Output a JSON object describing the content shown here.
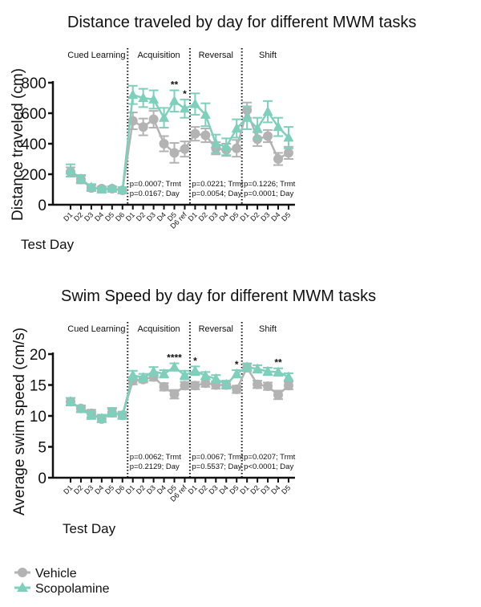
{
  "colors": {
    "vehicle": "#b3b3b3",
    "scopolamine": "#7ecfbc",
    "axis": "#111111"
  },
  "legend": {
    "entries": [
      {
        "name": "Vehicle",
        "marker": "circle",
        "color": "#b3b3b3"
      },
      {
        "name": "Scopolamine",
        "marker": "triangle",
        "color": "#7ecfbc"
      }
    ]
  },
  "chart_data": [
    {
      "type": "line",
      "title": "Distance traveled by day for different MWM tasks",
      "xlabel": "Test Day",
      "ylabel": "Distance  traveled (cm)",
      "ylim": [
        0,
        800
      ],
      "yticks": [
        "0",
        "200",
        "400",
        "600",
        "800"
      ],
      "ytick_values": [
        0,
        200,
        400,
        600,
        800
      ],
      "categories": [
        "D1",
        "D2",
        "D3",
        "D4",
        "D5",
        "D6",
        "D1",
        "D2",
        "D3",
        "D4",
        "D5",
        "D6 ref",
        "D1",
        "D2",
        "D3",
        "D4",
        "D5",
        "D1",
        "D2",
        "D3",
        "D4",
        "D5"
      ],
      "phases": [
        {
          "name": "Cued Learning",
          "start": 0,
          "end": 5,
          "pvals": []
        },
        {
          "name": "Acquisition",
          "start": 6,
          "end": 11,
          "pvals": [
            "p=0.0007; Trmt",
            "p=0.0167; Day"
          ]
        },
        {
          "name": "Reversal",
          "start": 12,
          "end": 16,
          "pvals": [
            "p=0.0221; Trmt",
            "p=0.0054; Day"
          ]
        },
        {
          "name": "Shift",
          "start": 17,
          "end": 21,
          "pvals": [
            "p=0.1226; Trmt",
            "p=0.0001; Day"
          ]
        }
      ],
      "series": [
        {
          "name": "Vehicle",
          "marker": "circle",
          "values": [
            215,
            165,
            110,
            105,
            105,
            95,
            550,
            510,
            560,
            400,
            340,
            365,
            465,
            455,
            370,
            360,
            370,
            620,
            430,
            450,
            300,
            340
          ],
          "errors": [
            30,
            25,
            20,
            15,
            15,
            20,
            55,
            55,
            55,
            50,
            65,
            50,
            45,
            45,
            40,
            40,
            55,
            50,
            45,
            40,
            40,
            40
          ]
        },
        {
          "name": "Scopolamine",
          "marker": "triangle",
          "values": [
            225,
            170,
            115,
            100,
            105,
            95,
            720,
            700,
            690,
            570,
            680,
            630,
            660,
            590,
            400,
            380,
            500,
            570,
            500,
            610,
            510,
            440
          ],
          "errors": [
            40,
            25,
            20,
            15,
            15,
            20,
            60,
            60,
            60,
            65,
            70,
            60,
            70,
            75,
            60,
            55,
            60,
            75,
            70,
            70,
            60,
            70
          ]
        }
      ],
      "annotations": [
        {
          "text": "**",
          "index": 10
        },
        {
          "text": "*",
          "index": 11
        }
      ],
      "grid": false,
      "legend_position": "bottom-left"
    },
    {
      "type": "line",
      "title": "Swim Speed by day for different MWM tasks",
      "xlabel": "Test Day",
      "ylabel": "Average swim speed  (cm/s)",
      "ylim": [
        0,
        20
      ],
      "yticks": [
        "0",
        "5",
        "10",
        "15",
        "20"
      ],
      "ytick_values": [
        0,
        5,
        10,
        15,
        20
      ],
      "categories": [
        "D1",
        "D2",
        "D3",
        "D4",
        "D5",
        "D6",
        "D1",
        "D2",
        "D3",
        "D4",
        "D5",
        "D6 ref",
        "D1",
        "D2",
        "D3",
        "D4",
        "D5",
        "D1",
        "D2",
        "D3",
        "D4",
        "D5"
      ],
      "phases": [
        {
          "name": "Cued Learning",
          "start": 0,
          "end": 5,
          "pvals": []
        },
        {
          "name": "Acquisition",
          "start": 6,
          "end": 11,
          "pvals": [
            "p=0.0062; Trmt",
            "p=0.2129; Day"
          ]
        },
        {
          "name": "Reversal",
          "start": 12,
          "end": 16,
          "pvals": [
            "p=0.0067; Trmt",
            "p=0.5537; Day"
          ]
        },
        {
          "name": "Shift",
          "start": 17,
          "end": 21,
          "pvals": [
            "p=0.0207; Trmt",
            "p<0.0001; Day"
          ]
        }
      ],
      "series": [
        {
          "name": "Vehicle",
          "marker": "circle",
          "values": [
            12.3,
            11.2,
            10.4,
            9.5,
            10.5,
            10.1,
            15.7,
            15.9,
            16.3,
            14.7,
            13.5,
            14.9,
            14.9,
            15.3,
            15.0,
            15.0,
            14.3,
            17.8,
            15.1,
            14.8,
            13.4,
            14.9
          ],
          "errors": [
            0.6,
            0.5,
            0.6,
            0.5,
            0.6,
            0.5,
            0.6,
            0.5,
            0.6,
            0.6,
            0.7,
            0.6,
            0.6,
            0.6,
            0.6,
            0.6,
            0.6,
            0.6,
            0.6,
            0.6,
            0.7,
            0.6
          ]
        },
        {
          "name": "Scopolamine",
          "marker": "triangle",
          "values": [
            12.3,
            11.1,
            10.1,
            9.6,
            10.6,
            10.1,
            16.6,
            16.2,
            17.2,
            16.8,
            17.9,
            16.6,
            17.3,
            16.5,
            16.0,
            15.1,
            16.8,
            17.9,
            17.6,
            17.2,
            17.1,
            16.3
          ],
          "errors": [
            0.6,
            0.5,
            0.6,
            0.6,
            0.7,
            0.6,
            0.7,
            0.6,
            0.7,
            0.6,
            0.6,
            0.7,
            0.7,
            0.6,
            0.6,
            0.6,
            0.6,
            0.6,
            0.6,
            0.6,
            0.6,
            0.6
          ]
        }
      ],
      "annotations": [
        {
          "text": "****",
          "index": 10
        },
        {
          "text": "*",
          "index": 12
        },
        {
          "text": "*",
          "index": 16
        },
        {
          "text": "**",
          "index": 20
        }
      ],
      "grid": false,
      "legend_position": "bottom-left"
    }
  ]
}
